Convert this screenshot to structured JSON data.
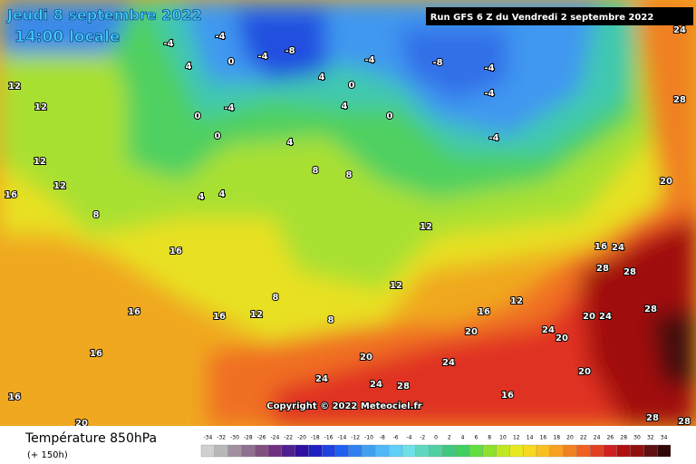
{
  "header": {
    "date": "Jeudi 8 septembre 2022",
    "time": "14:00 locale",
    "run": "Run GFS 6 Z du Vendredi 2 septembre 2022"
  },
  "copyright": "Copyright © 2022 Meteociel.fr",
  "legend": {
    "title": "Température 850hPa",
    "subtitle": "(+ 150h)",
    "labels": [
      -34,
      -32,
      -30,
      -28,
      -26,
      -24,
      -22,
      -20,
      -18,
      -16,
      -14,
      -12,
      -10,
      -8,
      -6,
      -4,
      -2,
      0,
      2,
      4,
      6,
      8,
      10,
      12,
      14,
      16,
      18,
      20,
      22,
      24,
      26,
      28,
      30,
      32,
      34
    ],
    "colors": [
      "#d0d0d0",
      "#b8b8b8",
      "#a090a0",
      "#907090",
      "#805080",
      "#703080",
      "#502090",
      "#3010a0",
      "#2020c0",
      "#2040e0",
      "#2060f0",
      "#3080f0",
      "#40a0f0",
      "#50b8f8",
      "#60d0f8",
      "#70e0e8",
      "#60d8c0",
      "#50d0a0",
      "#40c880",
      "#40d060",
      "#60e040",
      "#90e030",
      "#c0e820",
      "#e8e820",
      "#f8d820",
      "#f8c020",
      "#f8a020",
      "#f08020",
      "#f06020",
      "#e04020",
      "#d02020",
      "#b01010",
      "#901010",
      "#601010",
      "#300808"
    ]
  },
  "map_labels": [
    "-4",
    "-8",
    "-4",
    "-4",
    "4",
    "0",
    "4",
    "0",
    "-4",
    "-8",
    "-4",
    "-4",
    "-4",
    "0",
    "4",
    "4",
    "-4",
    "0",
    "0",
    "12",
    "12",
    "12",
    "12",
    "16",
    "8",
    "4",
    "4",
    "8",
    "8",
    "12",
    "12",
    "16",
    "16",
    "16",
    "16",
    "16",
    "20",
    "8",
    "8",
    "12",
    "16",
    "12",
    "20",
    "24",
    "24",
    "28",
    "24",
    "20",
    "20",
    "20",
    "24",
    "24",
    "28",
    "28",
    "28",
    "24",
    "16",
    "28",
    "20",
    "20",
    "28",
    "24",
    "16",
    "28"
  ]
}
